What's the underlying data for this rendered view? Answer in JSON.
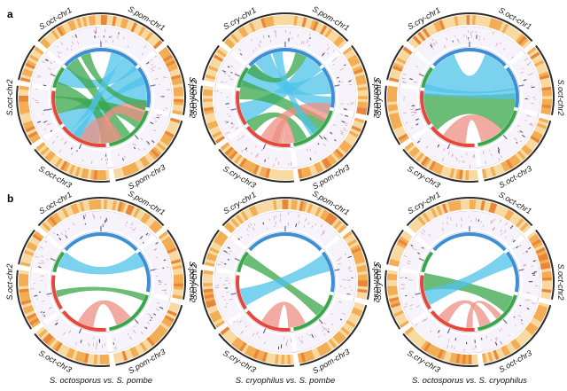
{
  "panels": [
    {
      "letter": "a",
      "circos": [
        {
          "labels": [
            "S.oct-chr1",
            "S.pom-chr1",
            "S.pom-chr2",
            "S.pom-chr3",
            "S.oct-chr3",
            "S.oct-chr2"
          ],
          "links": [
            {
              "from": 200,
              "to": 80,
              "width": 34,
              "color": "#4fc3ea"
            },
            {
              "from": 235,
              "to": 60,
              "width": 26,
              "color": "#4fc3ea"
            },
            {
              "from": 300,
              "to": 40,
              "width": 24,
              "color": "#4fc3ea"
            },
            {
              "from": 260,
              "to": 120,
              "width": 22,
              "color": "#3aa64a"
            },
            {
              "from": 320,
              "to": 150,
              "width": 18,
              "color": "#3aa64a"
            },
            {
              "from": 280,
              "to": 170,
              "width": 20,
              "color": "#3aa64a"
            },
            {
              "from": 180,
              "to": 110,
              "width": 26,
              "color": "#ee8f84"
            },
            {
              "from": 160,
              "to": 200,
              "width": 14,
              "color": "#ee8f84"
            },
            {
              "from": 340,
              "to": 100,
              "width": 12,
              "color": "#3aa64a"
            },
            {
              "from": 215,
              "to": 20,
              "width": 14,
              "color": "#4fc3ea"
            }
          ]
        },
        {
          "labels": [
            "S.cry-chr1",
            "S.pom-chr1",
            "S.pom-chr2",
            "S.pom-chr3",
            "S.cry-chr3",
            "S.cry-chr2"
          ],
          "links": [
            {
              "from": 300,
              "to": 70,
              "width": 30,
              "color": "#4fc3ea"
            },
            {
              "from": 250,
              "to": 40,
              "width": 26,
              "color": "#4fc3ea"
            },
            {
              "from": 330,
              "to": 100,
              "width": 22,
              "color": "#4fc3ea"
            },
            {
              "from": 280,
              "to": 130,
              "width": 24,
              "color": "#3aa64a"
            },
            {
              "from": 230,
              "to": 160,
              "width": 16,
              "color": "#3aa64a"
            },
            {
              "from": 200,
              "to": 110,
              "width": 24,
              "color": "#ee8f84"
            },
            {
              "from": 175,
              "to": 190,
              "width": 14,
              "color": "#ee8f84"
            },
            {
              "from": 310,
              "to": 20,
              "width": 14,
              "color": "#3aa64a"
            },
            {
              "from": 350,
              "to": 140,
              "width": 12,
              "color": "#4fc3ea"
            }
          ]
        },
        {
          "labels": [
            "S.cry-chr1",
            "S.oct-chr1",
            "S.oct-chr2",
            "S.oct-chr3",
            "S.cry-chr3",
            "S.cry-chr2"
          ],
          "links": [
            {
              "from": 310,
              "to": 50,
              "width": 60,
              "color": "#4fc3ea"
            },
            {
              "from": 250,
              "to": 110,
              "width": 50,
              "color": "#3aa64a"
            },
            {
              "from": 200,
              "to": 150,
              "width": 30,
              "color": "#ee8f84"
            },
            {
              "from": 280,
              "to": 85,
              "width": 14,
              "color": "#4fc3ea"
            }
          ]
        }
      ]
    },
    {
      "letter": "b",
      "circos": [
        {
          "labels": [
            "S.oct-chr1",
            "S.pom-chr1",
            "S.pom-chr2",
            "S.pom-chr3",
            "S.oct-chr3",
            "S.oct-chr2"
          ],
          "links": [
            {
              "from": 300,
              "to": 60,
              "width": 20,
              "color": "#4fc3ea"
            },
            {
              "from": 255,
              "to": 110,
              "width": 8,
              "color": "#3aa64a"
            },
            {
              "from": 200,
              "to": 150,
              "width": 20,
              "color": "#ee8f84"
            }
          ]
        },
        {
          "labels": [
            "S.cry-chr1",
            "S.pom-chr1",
            "S.pom-chr2",
            "S.pom-chr3",
            "S.cry-chr3",
            "S.cry-chr2"
          ],
          "links": [
            {
              "from": 300,
              "to": 130,
              "width": 14,
              "color": "#3aa64a"
            },
            {
              "from": 250,
              "to": 65,
              "width": 22,
              "color": "#4fc3ea"
            },
            {
              "from": 200,
              "to": 165,
              "width": 22,
              "color": "#ee8f84"
            }
          ]
        },
        {
          "labels": [
            "S.cry-chr1",
            "S.oct-chr1",
            "S.oct-chr2",
            "S.oct-chr3",
            "S.cry-chr3",
            "S.cry-chr2"
          ],
          "links": [
            {
              "from": 270,
              "to": 120,
              "width": 22,
              "color": "#3aa64a"
            },
            {
              "from": 250,
              "to": 60,
              "width": 20,
              "color": "#4fc3ea"
            },
            {
              "from": 215,
              "to": 160,
              "width": 14,
              "color": "#ee8f84"
            },
            {
              "from": 180,
              "to": 140,
              "width": 8,
              "color": "#ee8f84"
            }
          ]
        }
      ]
    }
  ],
  "captions": [
    "S. octosporus vs. S. pombe",
    "S. cryophilus vs. S. pombe",
    "S. octosporus vs. S. cryophilus"
  ],
  "colors": {
    "ideogram_outer": "#2b2b2b",
    "heat_light": "#f8d9a2",
    "heat_mid": "#f3ae55",
    "heat_dark": "#e8873a",
    "ring_segment": "#c7b8da",
    "blue_band": "#3d8fd3",
    "green_band": "#3aa64a",
    "red_band": "#e2483b",
    "link_blue": "#4fc3ea",
    "link_green": "#3aa64a",
    "link_red": "#ee8f84",
    "tick_purple": "#7b5ea7"
  }
}
